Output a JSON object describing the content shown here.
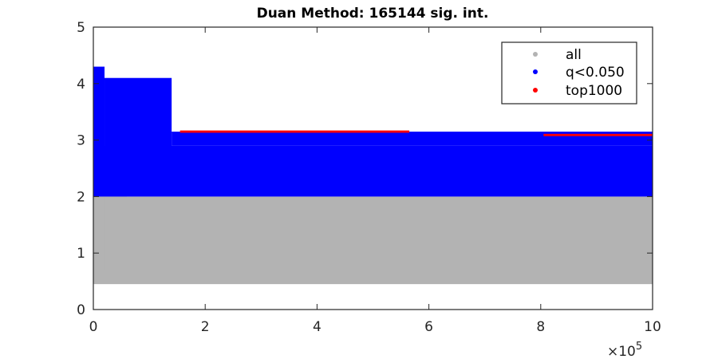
{
  "chart_data": {
    "type": "scatter",
    "title": "Duan Method: 165144 sig. int.",
    "xlabel": "",
    "ylabel": "",
    "xlim": [
      0,
      1000000
    ],
    "ylim": [
      0,
      5
    ],
    "x_exponent_label": "×10",
    "x_exponent_power": "5",
    "x_ticks": [
      {
        "value": 0,
        "label": "0"
      },
      {
        "value": 200000,
        "label": "2"
      },
      {
        "value": 400000,
        "label": "4"
      },
      {
        "value": 600000,
        "label": "6"
      },
      {
        "value": 800000,
        "label": "8"
      },
      {
        "value": 1000000,
        "label": "10"
      }
    ],
    "y_ticks": [
      {
        "value": 0,
        "label": "0"
      },
      {
        "value": 1,
        "label": "1"
      },
      {
        "value": 2,
        "label": "2"
      },
      {
        "value": 3,
        "label": "3"
      },
      {
        "value": 4,
        "label": "4"
      },
      {
        "value": 5,
        "label": "5"
      }
    ],
    "grid": false,
    "legend_position": "top-right",
    "series": [
      {
        "name": "all",
        "color": "#b3b3b3",
        "regions": [
          {
            "x_range": [
              0,
              1000000
            ],
            "y_range": [
              0.45,
              2.0
            ]
          },
          {
            "x_range": [
              0,
              20000
            ],
            "y_range": [
              1.2,
              3.6
            ]
          },
          {
            "x_range": [
              20000,
              60000
            ],
            "y_range": [
              0.7,
              2.3
            ]
          }
        ]
      },
      {
        "name": "q<0.050",
        "color": "#0000ff",
        "regions": [
          {
            "x_range": [
              0,
              1000000
            ],
            "y_range": [
              2.0,
              2.9
            ]
          },
          {
            "x_range": [
              0,
              20000
            ],
            "y_range": [
              2.3,
              4.3
            ]
          },
          {
            "x_range": [
              20000,
              140000
            ],
            "y_range": [
              2.1,
              4.1
            ]
          },
          {
            "x_range": [
              140000,
              1000000
            ],
            "y_range": [
              2.9,
              3.15
            ]
          }
        ]
      },
      {
        "name": "top1000",
        "color": "#ff0000",
        "regions": [
          {
            "x_range": [
              155000,
              565000
            ],
            "y_range": [
              3.13,
              3.17
            ]
          },
          {
            "x_range": [
              805000,
              1000000
            ],
            "y_range": [
              3.07,
              3.11
            ]
          }
        ]
      }
    ]
  }
}
